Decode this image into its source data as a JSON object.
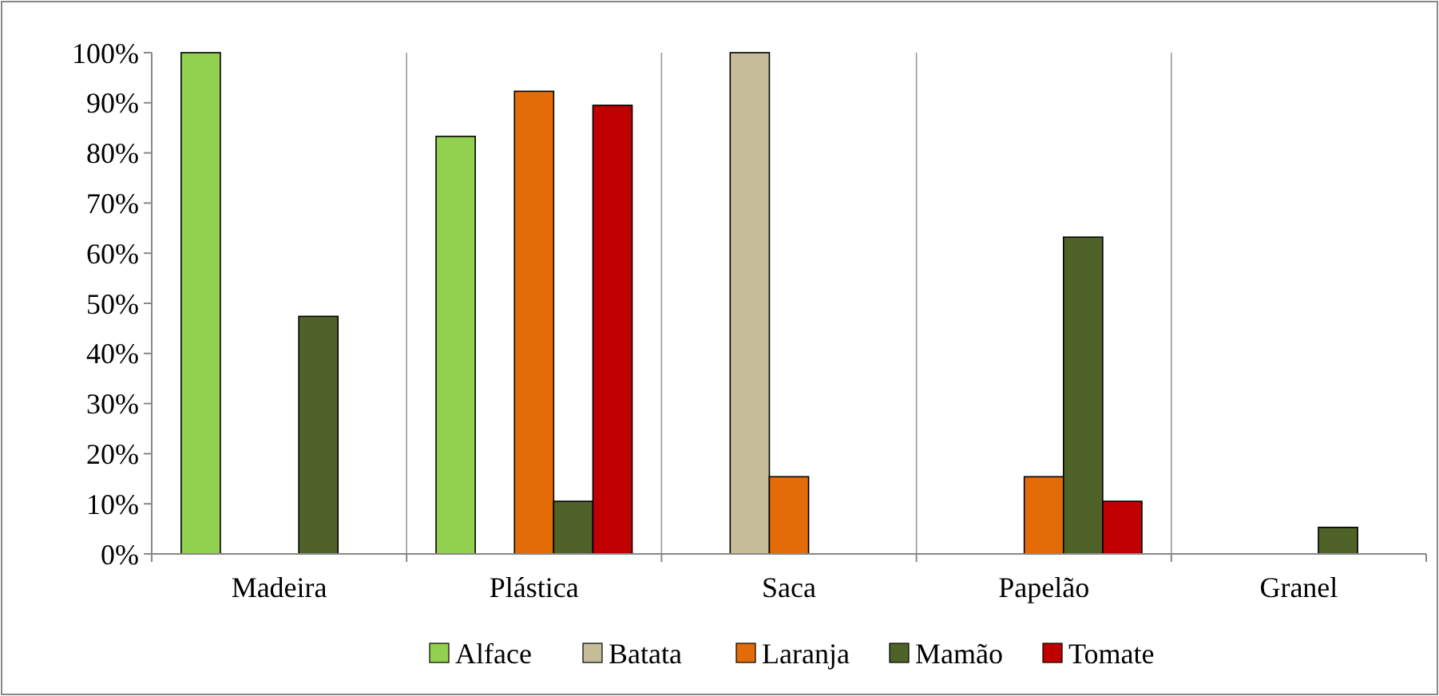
{
  "chart_data": {
    "type": "bar",
    "categories": [
      "Madeira",
      "Plástica",
      "Saca",
      "Papelão",
      "Granel"
    ],
    "series": [
      {
        "name": "Alface",
        "color": "#92d050",
        "values": [
          100,
          83.3,
          null,
          null,
          null
        ]
      },
      {
        "name": "Batata",
        "color": "#c4bd97",
        "values": [
          null,
          null,
          100,
          null,
          null
        ]
      },
      {
        "name": "Laranja",
        "color": "#e36c09",
        "values": [
          null,
          92.3,
          15.4,
          15.4,
          null
        ]
      },
      {
        "name": "Mamão",
        "color": "#4f6228",
        "values": [
          47.4,
          10.5,
          null,
          63.2,
          5.3
        ]
      },
      {
        "name": "Tomate",
        "color": "#c00000",
        "values": [
          null,
          89.5,
          null,
          10.5,
          null
        ]
      }
    ],
    "ylim": [
      0,
      100
    ],
    "yticks": [
      {
        "value": 0,
        "label": "0%"
      },
      {
        "value": 10,
        "label": "10%"
      },
      {
        "value": 20,
        "label": "20%"
      },
      {
        "value": 30,
        "label": "30%"
      },
      {
        "value": 40,
        "label": "40%"
      },
      {
        "value": 50,
        "label": "50%"
      },
      {
        "value": 60,
        "label": "60%"
      },
      {
        "value": 70,
        "label": "70%"
      },
      {
        "value": 80,
        "label": "80%"
      },
      {
        "value": 90,
        "label": "90%"
      },
      {
        "value": 100,
        "label": "100%"
      }
    ],
    "grid": "x",
    "legend": "bottom"
  }
}
